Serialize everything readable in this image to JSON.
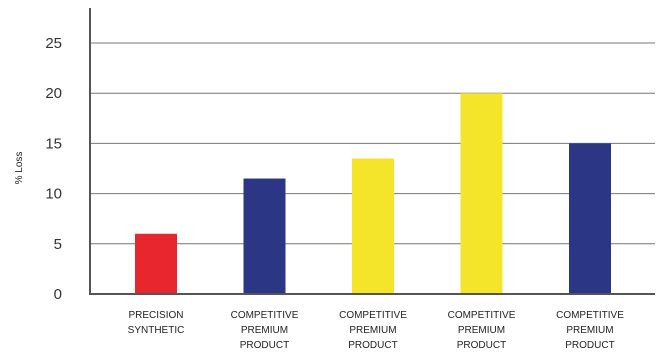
{
  "chart_data": {
    "type": "bar",
    "ylabel": "% Loss",
    "ylim": [
      0,
      25
    ],
    "yticks": [
      "0",
      "5",
      "10",
      "15",
      "20",
      "25"
    ],
    "grid": true,
    "categories": [
      [
        "PRECISION",
        "SYNTHETIC"
      ],
      [
        "COMPETITIVE",
        "PREMIUM",
        "PRODUCT"
      ],
      [
        "COMPETITIVE",
        "PREMIUM",
        "PRODUCT"
      ],
      [
        "COMPETITIVE",
        "PREMIUM",
        "PRODUCT"
      ],
      [
        "COMPETITIVE",
        "PREMIUM",
        "PRODUCT"
      ]
    ],
    "values": [
      6,
      11.5,
      13.5,
      20,
      15
    ],
    "colors": [
      "#e8262e",
      "#2b3785",
      "#f4e52a",
      "#f4e52a",
      "#2b3785"
    ],
    "axis_color": "#555555",
    "grid_color": "#777777"
  }
}
